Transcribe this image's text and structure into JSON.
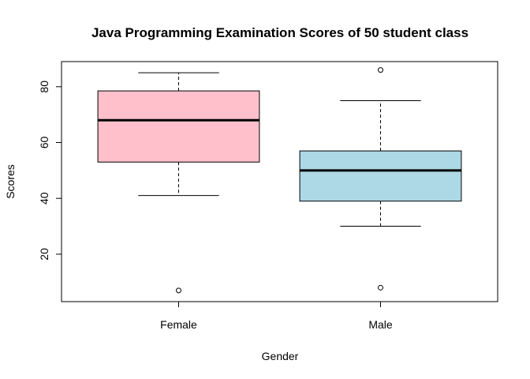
{
  "chart_data": {
    "type": "boxplot",
    "title": "Java Programming Examination Scores of 50 student class",
    "xlabel": "Gender",
    "ylabel": "Scores",
    "categories": [
      "Female",
      "Male"
    ],
    "ylim": [
      3,
      89
    ],
    "yticks": [
      20,
      40,
      60,
      80
    ],
    "grid": false,
    "legend": "none",
    "boxes": [
      {
        "category": "Female",
        "color": "#FFC0CB",
        "whisker_low": 41,
        "q1": 53,
        "median": 68,
        "q3": 78.5,
        "whisker_high": 85,
        "outliers": [
          7
        ]
      },
      {
        "category": "Male",
        "color": "#ADD8E6",
        "whisker_low": 30,
        "q1": 39,
        "median": 50,
        "q3": 57,
        "whisker_high": 75,
        "outliers": [
          8,
          86
        ]
      }
    ]
  }
}
